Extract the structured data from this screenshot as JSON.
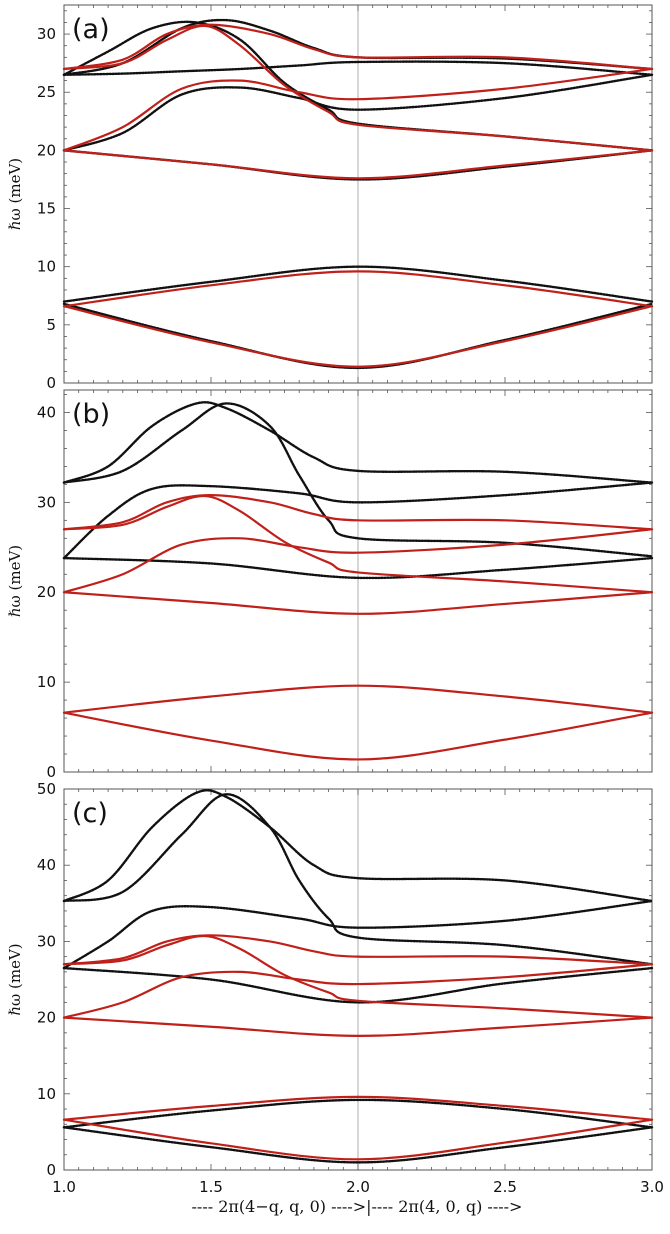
{
  "figure": {
    "xlabel": "---- 2π(4−q, q, 0) ---->|---- 2π(4, 0, q) ---->",
    "x_ticks": [
      1.0,
      1.5,
      2.0,
      2.5,
      3.0
    ],
    "x_tick_labels": [
      "1.0",
      "1.5",
      "2.0",
      "2.5",
      "3.0"
    ],
    "divider_x": 2.0
  },
  "colors": {
    "black_series": "#111111",
    "red_series": "#c0201a",
    "frame": "#555555",
    "divider": "#999999"
  },
  "chart_data": [
    {
      "type": "line",
      "panel_label": "(a)",
      "ylabel": "ℏω (meV)",
      "xlim": [
        1.0,
        3.0
      ],
      "ylim": [
        0,
        32.5
      ],
      "y_ticks": [
        0,
        5,
        10,
        15,
        20,
        25,
        30
      ],
      "series": [
        {
          "name": "black",
          "color": "black",
          "curves": [
            {
              "x": [
                1.0,
                1.2,
                1.4,
                1.55,
                1.7,
                1.85,
                2.0,
                2.5,
                3.0
              ],
              "y": [
                26.5,
                27.5,
                30.5,
                31.2,
                30.3,
                28.8,
                28.0,
                27.9,
                27.0
              ]
            },
            {
              "x": [
                1.0,
                1.15,
                1.3,
                1.45,
                1.6,
                1.75,
                1.9,
                2.0,
                2.5,
                3.0
              ],
              "y": [
                26.5,
                28.5,
                30.5,
                31.0,
                29.5,
                25.8,
                23.5,
                22.3,
                21.2,
                20.0
              ]
            },
            {
              "x": [
                1.0,
                1.2,
                1.4,
                1.6,
                1.8,
                2.0,
                2.5,
                3.0
              ],
              "y": [
                26.5,
                26.6,
                26.8,
                27.0,
                27.3,
                27.6,
                27.5,
                26.5
              ]
            },
            {
              "x": [
                1.0,
                1.2,
                1.4,
                1.6,
                1.8,
                2.0,
                2.5,
                3.0
              ],
              "y": [
                20.0,
                21.5,
                24.8,
                25.4,
                24.5,
                23.5,
                24.5,
                26.5
              ]
            },
            {
              "x": [
                1.0,
                1.5,
                2.0,
                2.5,
                3.0
              ],
              "y": [
                20.0,
                18.8,
                17.5,
                18.6,
                20.0
              ]
            },
            {
              "x": [
                1.0,
                1.5,
                2.0,
                2.5,
                3.0
              ],
              "y": [
                7.0,
                8.7,
                10.0,
                8.8,
                7.0
              ]
            },
            {
              "x": [
                1.0,
                1.5,
                2.0,
                2.5,
                3.0
              ],
              "y": [
                6.8,
                3.6,
                1.3,
                3.7,
                6.8
              ]
            }
          ]
        },
        {
          "name": "red",
          "color": "red",
          "curves": [
            {
              "x": [
                1.0,
                1.2,
                1.35,
                1.5,
                1.7,
                1.85,
                2.0,
                2.5,
                3.0
              ],
              "y": [
                27.0,
                27.8,
                30.0,
                30.8,
                30.0,
                28.7,
                28.0,
                28.0,
                27.0
              ]
            },
            {
              "x": [
                1.0,
                1.2,
                1.35,
                1.48,
                1.6,
                1.75,
                1.9,
                2.0,
                2.5,
                3.0
              ],
              "y": [
                27.0,
                27.5,
                29.5,
                30.7,
                29.0,
                25.6,
                23.3,
                22.2,
                21.2,
                20.0
              ]
            },
            {
              "x": [
                1.0,
                1.2,
                1.4,
                1.6,
                1.8,
                2.0,
                2.5,
                3.0
              ],
              "y": [
                20.0,
                22.0,
                25.3,
                26.0,
                25.0,
                24.4,
                25.3,
                27.0
              ]
            },
            {
              "x": [
                1.0,
                1.5,
                2.0,
                2.5,
                3.0
              ],
              "y": [
                20.0,
                18.8,
                17.6,
                18.7,
                20.0
              ]
            },
            {
              "x": [
                1.0,
                1.5,
                2.0,
                2.5,
                3.0
              ],
              "y": [
                6.6,
                8.4,
                9.6,
                8.4,
                6.6
              ]
            },
            {
              "x": [
                1.0,
                1.5,
                2.0,
                2.5,
                3.0
              ],
              "y": [
                6.6,
                3.5,
                1.4,
                3.6,
                6.6
              ]
            }
          ]
        }
      ]
    },
    {
      "type": "line",
      "panel_label": "(b)",
      "ylabel": "ℏω (meV)",
      "xlim": [
        1.0,
        3.0
      ],
      "ylim": [
        0,
        42.5
      ],
      "y_ticks": [
        0,
        10,
        20,
        30,
        40
      ],
      "series": [
        {
          "name": "black",
          "color": "black",
          "curves": [
            {
              "x": [
                1.0,
                1.15,
                1.3,
                1.45,
                1.55,
                1.7,
                1.85,
                2.0,
                2.5,
                3.0
              ],
              "y": [
                32.2,
                34.0,
                38.5,
                41.0,
                40.5,
                38.0,
                35.0,
                33.5,
                33.4,
                32.2
              ]
            },
            {
              "x": [
                1.0,
                1.2,
                1.4,
                1.55,
                1.7,
                1.8,
                1.9,
                2.0,
                2.5,
                3.0
              ],
              "y": [
                32.2,
                33.5,
                38.0,
                41.0,
                38.5,
                33.0,
                28.0,
                26.0,
                25.5,
                24.0
              ]
            },
            {
              "x": [
                1.0,
                1.15,
                1.3,
                1.5,
                1.8,
                2.0,
                2.5,
                3.0
              ],
              "y": [
                23.8,
                28.5,
                31.5,
                31.8,
                31.0,
                30.0,
                30.8,
                32.2
              ]
            },
            {
              "x": [
                1.0,
                1.5,
                2.0,
                2.5,
                3.0
              ],
              "y": [
                23.8,
                23.2,
                21.6,
                22.5,
                23.8
              ]
            }
          ]
        },
        {
          "name": "red",
          "color": "red",
          "curves": [
            {
              "x": [
                1.0,
                1.2,
                1.35,
                1.5,
                1.7,
                1.85,
                2.0,
                2.5,
                3.0
              ],
              "y": [
                27.0,
                27.8,
                30.0,
                30.8,
                30.0,
                28.7,
                28.0,
                28.0,
                27.0
              ]
            },
            {
              "x": [
                1.0,
                1.2,
                1.35,
                1.48,
                1.6,
                1.75,
                1.9,
                2.0,
                2.5,
                3.0
              ],
              "y": [
                27.0,
                27.5,
                29.5,
                30.7,
                29.0,
                25.6,
                23.3,
                22.2,
                21.2,
                20.0
              ]
            },
            {
              "x": [
                1.0,
                1.2,
                1.4,
                1.6,
                1.8,
                2.0,
                2.5,
                3.0
              ],
              "y": [
                20.0,
                22.0,
                25.3,
                26.0,
                25.0,
                24.4,
                25.3,
                27.0
              ]
            },
            {
              "x": [
                1.0,
                1.5,
                2.0,
                2.5,
                3.0
              ],
              "y": [
                20.0,
                18.8,
                17.6,
                18.7,
                20.0
              ]
            },
            {
              "x": [
                1.0,
                1.5,
                2.0,
                2.5,
                3.0
              ],
              "y": [
                6.6,
                8.4,
                9.6,
                8.4,
                6.6
              ]
            },
            {
              "x": [
                1.0,
                1.5,
                2.0,
                2.5,
                3.0
              ],
              "y": [
                6.6,
                3.5,
                1.4,
                3.6,
                6.6
              ]
            }
          ]
        }
      ]
    },
    {
      "type": "line",
      "panel_label": "(c)",
      "ylabel": "ℏω (meV)",
      "xlim": [
        1.0,
        3.0
      ],
      "ylim": [
        0,
        50
      ],
      "y_ticks": [
        0,
        10,
        20,
        30,
        40,
        50
      ],
      "series": [
        {
          "name": "black",
          "color": "black",
          "curves": [
            {
              "x": [
                1.0,
                1.15,
                1.3,
                1.45,
                1.55,
                1.7,
                1.85,
                2.0,
                2.5,
                3.0
              ],
              "y": [
                35.3,
                38.0,
                45.0,
                49.5,
                49.0,
                45.0,
                40.0,
                38.3,
                38.0,
                35.3
              ]
            },
            {
              "x": [
                1.0,
                1.2,
                1.4,
                1.55,
                1.7,
                1.8,
                1.9,
                2.0,
                2.5,
                3.0
              ],
              "y": [
                35.3,
                36.5,
                44.0,
                49.3,
                45.0,
                38.0,
                33.0,
                30.5,
                29.5,
                27.0
              ]
            },
            {
              "x": [
                1.0,
                1.15,
                1.3,
                1.5,
                1.8,
                2.0,
                2.5,
                3.0
              ],
              "y": [
                26.5,
                30.0,
                34.0,
                34.5,
                33.0,
                31.8,
                32.7,
                35.3
              ]
            },
            {
              "x": [
                1.0,
                1.5,
                2.0,
                2.5,
                3.0
              ],
              "y": [
                26.5,
                25.0,
                22.0,
                24.5,
                26.5
              ]
            },
            {
              "x": [
                1.0,
                1.5,
                2.0,
                2.5,
                3.0
              ],
              "y": [
                5.6,
                7.8,
                9.2,
                8.0,
                5.6
              ]
            },
            {
              "x": [
                1.0,
                1.5,
                2.0,
                2.5,
                3.0
              ],
              "y": [
                5.6,
                3.0,
                1.0,
                3.0,
                5.6
              ]
            }
          ]
        },
        {
          "name": "red",
          "color": "red",
          "curves": [
            {
              "x": [
                1.0,
                1.2,
                1.35,
                1.5,
                1.7,
                1.85,
                2.0,
                2.5,
                3.0
              ],
              "y": [
                27.0,
                27.8,
                30.0,
                30.8,
                30.0,
                28.7,
                28.0,
                28.0,
                27.0
              ]
            },
            {
              "x": [
                1.0,
                1.2,
                1.35,
                1.48,
                1.6,
                1.75,
                1.9,
                2.0,
                2.5,
                3.0
              ],
              "y": [
                27.0,
                27.5,
                29.5,
                30.7,
                29.0,
                25.6,
                23.3,
                22.2,
                21.2,
                20.0
              ]
            },
            {
              "x": [
                1.0,
                1.2,
                1.4,
                1.6,
                1.8,
                2.0,
                2.5,
                3.0
              ],
              "y": [
                20.0,
                22.0,
                25.3,
                26.0,
                25.0,
                24.4,
                25.3,
                27.0
              ]
            },
            {
              "x": [
                1.0,
                1.5,
                2.0,
                2.5,
                3.0
              ],
              "y": [
                20.0,
                18.8,
                17.6,
                18.7,
                20.0
              ]
            },
            {
              "x": [
                1.0,
                1.5,
                2.0,
                2.5,
                3.0
              ],
              "y": [
                6.6,
                8.4,
                9.6,
                8.4,
                6.6
              ]
            },
            {
              "x": [
                1.0,
                1.5,
                2.0,
                2.5,
                3.0
              ],
              "y": [
                6.6,
                3.5,
                1.4,
                3.6,
                6.6
              ]
            }
          ]
        }
      ]
    }
  ]
}
